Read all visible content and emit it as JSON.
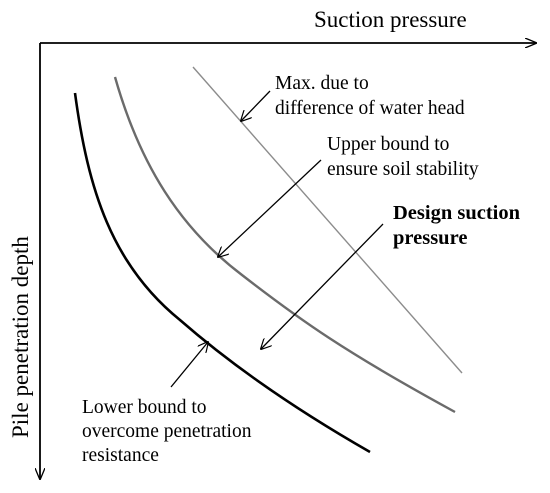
{
  "diagram": {
    "x_axis_label": "Suction pressure",
    "y_axis_label": "Pile penetration depth",
    "curves": [
      {
        "id": "lower-bound",
        "color": "#000000"
      },
      {
        "id": "upper-bound",
        "color": "#6b6b6b"
      },
      {
        "id": "max-water-head",
        "color": "#8c8c8c"
      }
    ],
    "annotations": {
      "max_water_head": [
        "Max. due to",
        "difference of water head"
      ],
      "upper_bound": [
        "Upper bound to",
        "ensure soil stability"
      ],
      "design": [
        "Design suction",
        "pressure"
      ],
      "lower_bound": [
        "Lower bound to",
        "overcome penetration",
        "resistance"
      ]
    }
  }
}
